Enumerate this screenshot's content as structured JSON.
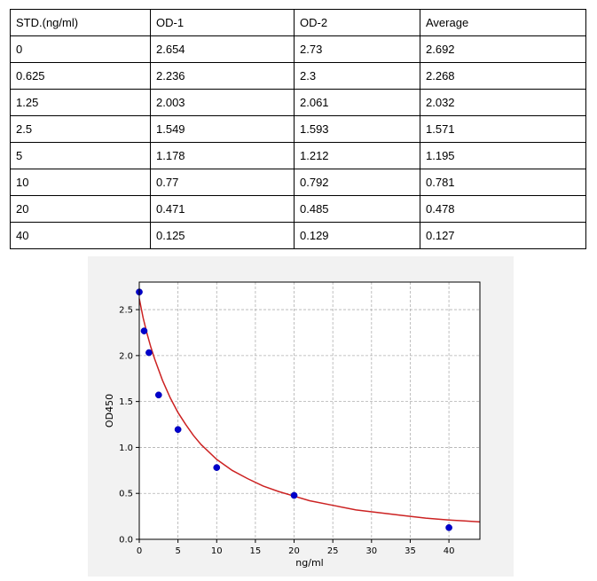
{
  "table": {
    "headers": [
      "STD.(ng/ml)",
      "OD-1",
      "OD-2",
      "Average"
    ],
    "rows": [
      [
        "0",
        "2.654",
        "2.73",
        "2.692"
      ],
      [
        "0.625",
        "2.236",
        "2.3",
        "2.268"
      ],
      [
        "1.25",
        "2.003",
        "2.061",
        "2.032"
      ],
      [
        "2.5",
        "1.549",
        "1.593",
        "1.571"
      ],
      [
        "5",
        "1.178",
        "1.212",
        "1.195"
      ],
      [
        "10",
        "0.77",
        "0.792",
        "0.781"
      ],
      [
        "20",
        "0.471",
        "0.485",
        "0.478"
      ],
      [
        "40",
        "0.125",
        "0.129",
        "0.127"
      ]
    ]
  },
  "chart_data": {
    "type": "scatter",
    "xlabel": "ng/ml",
    "ylabel": "OD450",
    "xlim": [
      0,
      44
    ],
    "ylim": [
      0,
      2.8
    ],
    "xticks": [
      0,
      5,
      10,
      15,
      20,
      25,
      30,
      35,
      40
    ],
    "yticks": [
      0.0,
      0.5,
      1.0,
      1.5,
      2.0,
      2.5
    ],
    "ytick_labels": [
      "0.0",
      "0.5",
      "1.0",
      "1.5",
      "2.0",
      "2.5"
    ],
    "grid": true,
    "points": {
      "x": [
        0,
        0.625,
        1.25,
        2.5,
        5,
        10,
        20,
        40
      ],
      "y": [
        2.692,
        2.268,
        2.032,
        1.571,
        1.195,
        0.781,
        0.478,
        0.127
      ]
    },
    "point_color": "#0000cc",
    "fit_curve": {
      "color": "#cc2222",
      "x": [
        0,
        0.5,
        1,
        1.5,
        2,
        3,
        4,
        5,
        6,
        7,
        8,
        10,
        12,
        14,
        16,
        18,
        20,
        22,
        25,
        28,
        31,
        34,
        37,
        40,
        42,
        44
      ],
      "y": [
        2.62,
        2.41,
        2.24,
        2.09,
        1.96,
        1.73,
        1.54,
        1.38,
        1.25,
        1.13,
        1.03,
        0.87,
        0.75,
        0.66,
        0.58,
        0.52,
        0.47,
        0.42,
        0.37,
        0.32,
        0.29,
        0.26,
        0.23,
        0.21,
        0.2,
        0.19
      ]
    }
  }
}
